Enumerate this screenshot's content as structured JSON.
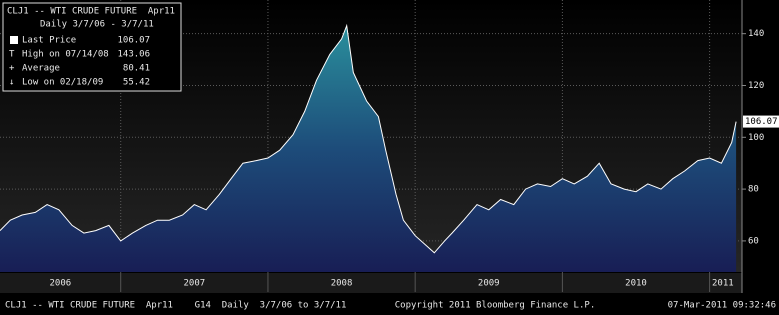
{
  "chart_data": {
    "type": "area",
    "title": "CLJ1 -- WTI CRUDE FUTURE  Apr11",
    "subtitle": "Daily 3/7/06 - 3/7/11",
    "stats": [
      {
        "label": "Last Price",
        "value": 106.07
      },
      {
        "label": "High on 07/14/08",
        "value": 143.06
      },
      {
        "label": "Average",
        "value": 80.41
      },
      {
        "label": "Low on 02/18/09",
        "value": 55.42
      }
    ],
    "x": [
      2006.18,
      2006.25,
      2006.33,
      2006.42,
      2006.5,
      2006.58,
      2006.67,
      2006.75,
      2006.83,
      2006.92,
      2007.0,
      2007.08,
      2007.17,
      2007.25,
      2007.33,
      2007.42,
      2007.5,
      2007.58,
      2007.67,
      2007.75,
      2007.83,
      2007.92,
      2008.0,
      2008.08,
      2008.17,
      2008.25,
      2008.33,
      2008.42,
      2008.5,
      2008.535,
      2008.58,
      2008.67,
      2008.75,
      2008.8,
      2008.87,
      2008.92,
      2009.0,
      2009.08,
      2009.13,
      2009.2,
      2009.25,
      2009.33,
      2009.42,
      2009.5,
      2009.58,
      2009.67,
      2009.75,
      2009.83,
      2009.92,
      2010.0,
      2010.08,
      2010.17,
      2010.25,
      2010.33,
      2010.42,
      2010.5,
      2010.58,
      2010.67,
      2010.75,
      2010.83,
      2010.92,
      2011.0,
      2011.08,
      2011.15,
      2011.18
    ],
    "values": [
      64,
      68,
      70,
      71,
      74,
      72,
      66,
      63,
      64,
      66,
      60,
      63,
      66,
      68,
      68,
      70,
      74,
      72,
      78,
      84,
      90,
      91,
      92,
      95,
      101,
      110,
      122,
      132,
      138,
      143.06,
      125,
      114,
      108,
      95,
      78,
      68,
      62,
      58,
      55.42,
      60,
      63,
      68,
      74,
      72,
      76,
      74,
      80,
      82,
      81,
      84,
      82,
      85,
      90,
      82,
      80,
      79,
      82,
      80,
      84,
      87,
      91,
      92,
      90,
      98,
      106.07
    ],
    "line_color": "#ffffff",
    "xlim": [
      2006.18,
      2011.22
    ],
    "xticks": [
      {
        "value": 2006.59,
        "label": "2006"
      },
      {
        "value": 2007.5,
        "label": "2007"
      },
      {
        "value": 2008.5,
        "label": "2008"
      },
      {
        "value": 2009.5,
        "label": "2009"
      },
      {
        "value": 2010.5,
        "label": "2010"
      },
      {
        "value": 2011.09,
        "label": "2011"
      }
    ],
    "xgrid": [
      2007,
      2008,
      2009,
      2010,
      2011
    ],
    "ylim": [
      48,
      153
    ],
    "yticks": [
      60,
      80,
      100,
      120,
      140
    ],
    "grid": true,
    "footer_left": "CLJ1 -- WTI CRUDE FUTURE  Apr11    G14  Daily  3/7/06 to 3/7/11",
    "footer_center": "Copyright 2011 Bloomberg Finance L.P.",
    "footer_right": "07-Mar-2011 09:32:46"
  }
}
